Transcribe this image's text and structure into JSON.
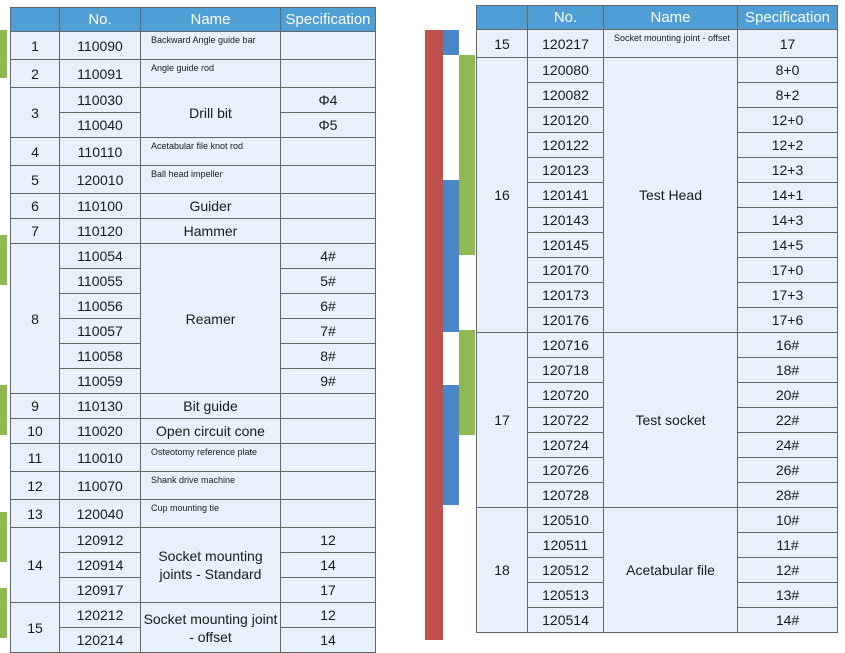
{
  "headers": {
    "no": "No.",
    "name": "Name",
    "spec": "Specification"
  },
  "colors": {
    "header_bg": "#4f9fd6",
    "cell_bg": "#e6f1fb",
    "green_bar": "#8fba52",
    "blue_bar": "#4a86c8",
    "red_bar": "#c0504d"
  },
  "left_groups": [
    {
      "idx": "1",
      "name": "Backward Angle guide bar",
      "small": true,
      "rows": [
        {
          "no": "110090",
          "spec": ""
        }
      ]
    },
    {
      "idx": "2",
      "name": "Angle guide rod",
      "small": true,
      "rows": [
        {
          "no": "110091",
          "spec": ""
        }
      ]
    },
    {
      "idx": "3",
      "name": "Drill bit",
      "rows": [
        {
          "no": "110030",
          "spec": "Φ4"
        },
        {
          "no": "110040",
          "spec": "Φ5"
        }
      ]
    },
    {
      "idx": "4",
      "name": "Acetabular file knot rod",
      "small": true,
      "rows": [
        {
          "no": "110110",
          "spec": ""
        }
      ]
    },
    {
      "idx": "5",
      "name": "Ball head impeller",
      "small": true,
      "rows": [
        {
          "no": "120010",
          "spec": ""
        }
      ]
    },
    {
      "idx": "6",
      "name": "Guider",
      "rows": [
        {
          "no": "110100",
          "spec": ""
        }
      ]
    },
    {
      "idx": "7",
      "name": "Hammer",
      "rows": [
        {
          "no": "110120",
          "spec": ""
        }
      ]
    },
    {
      "idx": "8",
      "name": "Reamer",
      "rows": [
        {
          "no": "110054",
          "spec": "4#"
        },
        {
          "no": "110055",
          "spec": "5#"
        },
        {
          "no": "110056",
          "spec": "6#"
        },
        {
          "no": "110057",
          "spec": "7#"
        },
        {
          "no": "110058",
          "spec": "8#"
        },
        {
          "no": "110059",
          "spec": "9#"
        }
      ]
    },
    {
      "idx": "9",
      "name": "Bit guide",
      "rows": [
        {
          "no": "110130",
          "spec": ""
        }
      ]
    },
    {
      "idx": "10",
      "name": "Open circuit cone",
      "rows": [
        {
          "no": "110020",
          "spec": ""
        }
      ]
    },
    {
      "idx": "11",
      "name": "Osteotomy reference plate",
      "small": true,
      "rows": [
        {
          "no": "110010",
          "spec": ""
        }
      ]
    },
    {
      "idx": "12",
      "name": "Shank drive machine",
      "small": true,
      "rows": [
        {
          "no": "110070",
          "spec": ""
        }
      ]
    },
    {
      "idx": "13",
      "name": "Cup mounting tie",
      "small": true,
      "rows": [
        {
          "no": "120040",
          "spec": ""
        }
      ]
    },
    {
      "idx": "14",
      "name": "Socket mounting joints - Standard",
      "rows": [
        {
          "no": "120912",
          "spec": "12"
        },
        {
          "no": "120914",
          "spec": "14"
        },
        {
          "no": "120917",
          "spec": "17"
        }
      ]
    },
    {
      "idx": "15",
      "name": "Socket mounting joint - offset",
      "rows": [
        {
          "no": "120212",
          "spec": "12"
        },
        {
          "no": "120214",
          "spec": "14"
        }
      ]
    }
  ],
  "right_groups": [
    {
      "idx": "15",
      "name": "Socket mounting joint - offset",
      "small": true,
      "rows": [
        {
          "no": "120217",
          "spec": "17"
        }
      ]
    },
    {
      "idx": "16",
      "name": "Test Head",
      "rows": [
        {
          "no": "120080",
          "spec": "8+0"
        },
        {
          "no": "120082",
          "spec": "8+2"
        },
        {
          "no": "120120",
          "spec": "12+0"
        },
        {
          "no": "120122",
          "spec": "12+2"
        },
        {
          "no": "120123",
          "spec": "12+3"
        },
        {
          "no": "120141",
          "spec": "14+1"
        },
        {
          "no": "120143",
          "spec": "14+3"
        },
        {
          "no": "120145",
          "spec": "14+5"
        },
        {
          "no": "120170",
          "spec": "17+0"
        },
        {
          "no": "120173",
          "spec": "17+3"
        },
        {
          "no": "120176",
          "spec": "17+6"
        }
      ]
    },
    {
      "idx": "17",
      "name": "Test socket",
      "rows": [
        {
          "no": "120716",
          "spec": "16#"
        },
        {
          "no": "120718",
          "spec": "18#"
        },
        {
          "no": "120720",
          "spec": "20#"
        },
        {
          "no": "120722",
          "spec": "22#"
        },
        {
          "no": "120724",
          "spec": "24#"
        },
        {
          "no": "120726",
          "spec": "26#"
        },
        {
          "no": "120728",
          "spec": "28#"
        }
      ]
    },
    {
      "idx": "18",
      "name": "Acetabular file",
      "rows": [
        {
          "no": "120510",
          "spec": "10#"
        },
        {
          "no": "120511",
          "spec": "11#"
        },
        {
          "no": "120512",
          "spec": "12#"
        },
        {
          "no": "120513",
          "spec": "13#"
        },
        {
          "no": "120514",
          "spec": "14#"
        }
      ]
    }
  ]
}
